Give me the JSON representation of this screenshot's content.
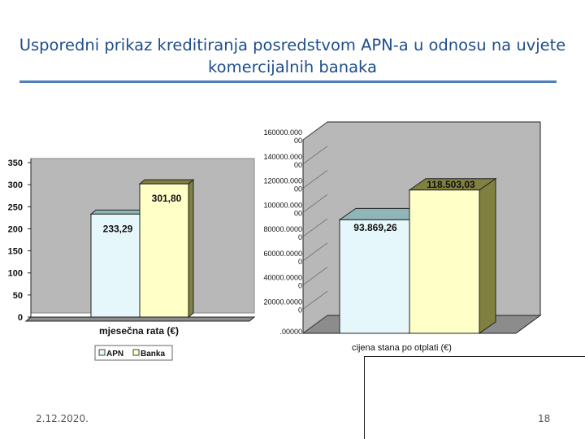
{
  "slide": {
    "title": "Usporedni prikaz kreditiranja posredstvom APN-a u odnosu na uvjete komercijalnih banaka",
    "date": "2.12.2020.",
    "page_number": "18"
  },
  "colors": {
    "title": "#1f4e8c",
    "rule": "#4f7fbf",
    "apn": "#e6f7fc",
    "banka": "#ffffc8",
    "apn_top": "#8fb5b8",
    "banka_top": "#808040",
    "wall": "#b8b8b8",
    "floor": "#8c8c8c"
  },
  "chart_data": [
    {
      "type": "bar",
      "categories": [
        "mjesečna rata (€)"
      ],
      "series": [
        {
          "name": "APN",
          "values": [
            233.29
          ],
          "label": "233,29"
        },
        {
          "name": "Banka",
          "values": [
            301.8
          ],
          "label": "301,80"
        }
      ],
      "xlabel": "mjesečna rata (€)",
      "ylim": [
        0,
        350
      ],
      "yticks": [
        "0",
        "50",
        "100",
        "150",
        "200",
        "250",
        "300",
        "350"
      ],
      "legend": [
        "APN",
        "Banka"
      ],
      "legend_position": "bottom",
      "grid": false
    },
    {
      "type": "bar",
      "categories": [
        "cijena stana po otplati (€)"
      ],
      "series": [
        {
          "name": "APN",
          "values": [
            93869.26
          ],
          "label": "93.869,26"
        },
        {
          "name": "Banka",
          "values": [
            118503.03
          ],
          "label": "118.503,03"
        }
      ],
      "xlabel": "cijena stana po otplati (€)",
      "ylim": [
        0,
        160000
      ],
      "yticks": [
        ".00000",
        "20000.0000\n0",
        "40000.0000\n0",
        "60000.0000\n0",
        "80000.0000\n0",
        "100000.000\n00",
        "120000.000\n00",
        "140000.000\n00",
        "160000.000\n00"
      ],
      "grid": false
    }
  ]
}
